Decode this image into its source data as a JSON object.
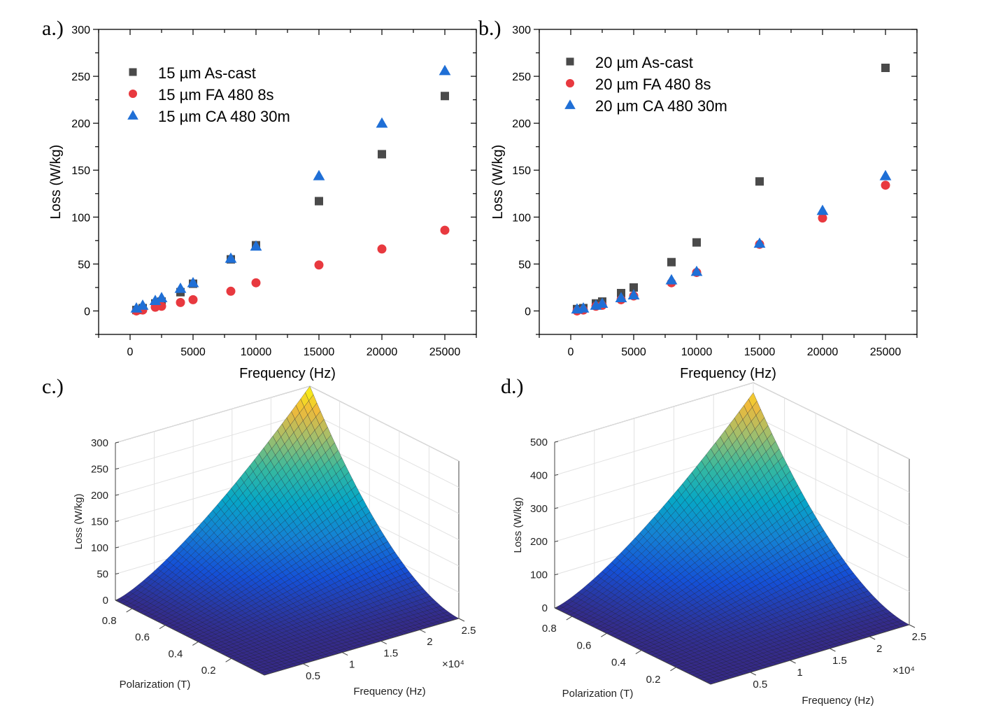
{
  "chart_data": [
    {
      "panel": "a.)",
      "type": "scatter",
      "xlabel": "Frequency (Hz)",
      "ylabel": "Loss (W/kg)",
      "xlim": [
        -2500,
        27500
      ],
      "ylim": [
        -25,
        300
      ],
      "xticks": [
        0,
        5000,
        10000,
        15000,
        20000,
        25000
      ],
      "yticks": [
        0,
        50,
        100,
        150,
        200,
        250,
        300
      ],
      "legend_position": "top-left",
      "series": [
        {
          "name": "15 µm As-cast",
          "marker": "square",
          "color": "#4a4a4a",
          "x": [
            500,
            1000,
            2000,
            2500,
            4000,
            5000,
            8000,
            10000,
            15000,
            20000,
            25000
          ],
          "y": [
            1,
            3,
            8,
            10,
            20,
            29,
            55,
            70,
            117,
            167,
            229
          ]
        },
        {
          "name": "15 µm FA 480 8s",
          "marker": "circle",
          "color": "#e8393f",
          "x": [
            500,
            1000,
            2000,
            2500,
            4000,
            5000,
            8000,
            10000,
            15000,
            20000,
            25000
          ],
          "y": [
            0,
            1,
            4,
            5,
            9,
            12,
            21,
            30,
            49,
            66,
            86
          ]
        },
        {
          "name": "15 µm CA 480 30m",
          "marker": "triangle",
          "color": "#1f6fd6",
          "x": [
            500,
            1000,
            2000,
            2500,
            4000,
            5000,
            8000,
            10000,
            15000,
            20000,
            25000
          ],
          "y": [
            3,
            6,
            11,
            14,
            24,
            30,
            56,
            69,
            144,
            200,
            256
          ]
        }
      ]
    },
    {
      "panel": "b.)",
      "type": "scatter",
      "xlabel": "Frequency (Hz)",
      "ylabel": "Loss (W/kg)",
      "xlim": [
        -2500,
        27500
      ],
      "ylim": [
        -25,
        300
      ],
      "xticks": [
        0,
        5000,
        10000,
        15000,
        20000,
        25000
      ],
      "yticks": [
        0,
        50,
        100,
        150,
        200,
        250,
        300
      ],
      "legend_position": "top-left",
      "series": [
        {
          "name": "20 µm As-cast",
          "marker": "square",
          "color": "#4a4a4a",
          "x": [
            500,
            1000,
            2000,
            2500,
            4000,
            5000,
            8000,
            10000,
            15000,
            25000
          ],
          "y": [
            2,
            3,
            8,
            10,
            19,
            25,
            52,
            73,
            138,
            259
          ]
        },
        {
          "name": "20 µm FA 480 8s",
          "marker": "circle",
          "color": "#e8393f",
          "x": [
            500,
            1000,
            2000,
            2500,
            4000,
            5000,
            8000,
            10000,
            15000,
            20000,
            25000
          ],
          "y": [
            0,
            1,
            5,
            6,
            12,
            16,
            30,
            41,
            71,
            99,
            134
          ]
        },
        {
          "name": "20 µm CA 480 30m",
          "marker": "triangle",
          "color": "#1f6fd6",
          "x": [
            500,
            1000,
            2000,
            2500,
            4000,
            5000,
            8000,
            10000,
            15000,
            20000,
            25000
          ],
          "y": [
            2,
            3,
            6,
            8,
            14,
            17,
            33,
            42,
            72,
            107,
            144
          ]
        }
      ]
    },
    {
      "panel": "c.)",
      "type": "surface",
      "xlabel": "Frequency (Hz)",
      "ylabel": "Polarization (T)",
      "zlabel": "Loss (W/kg)",
      "x_multiplier": "×10^4",
      "xticks": [
        "0.5",
        "1",
        "1.5",
        "2",
        "2.5"
      ],
      "yticks": [
        "0.2",
        "0.4",
        "0.6",
        "0.8"
      ],
      "zticks": [
        "0",
        "50",
        "100",
        "150",
        "200",
        "250",
        "300"
      ],
      "zlim": [
        0,
        300
      ],
      "peak_z": 300,
      "colormap": "parula"
    },
    {
      "panel": "d.)",
      "type": "surface",
      "xlabel": "Frequency (Hz)",
      "ylabel": "Polarization (T)",
      "zlabel": "Loss (W/kg)",
      "x_multiplier": "×10^4",
      "xticks": [
        "0.5",
        "1",
        "1.5",
        "2",
        "2.5"
      ],
      "yticks": [
        "0.2",
        "0.4",
        "0.6",
        "0.8"
      ],
      "zticks": [
        "0",
        "100",
        "200",
        "300",
        "400",
        "500"
      ],
      "zlim": [
        0,
        500
      ],
      "peak_z": 470,
      "colormap": "parula"
    }
  ]
}
